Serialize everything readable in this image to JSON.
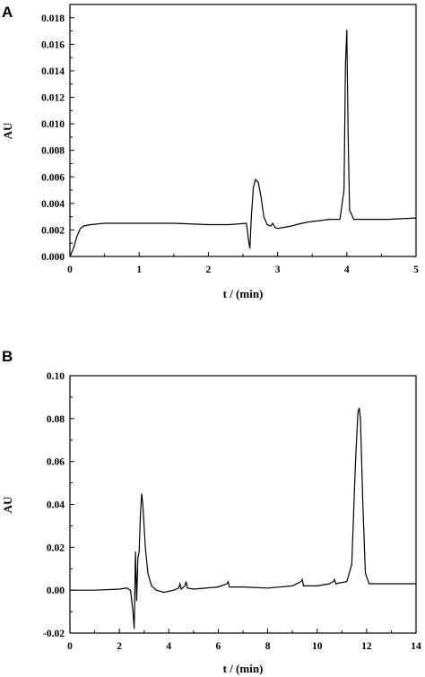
{
  "chart_data": [
    {
      "panel": "A",
      "type": "line",
      "xlabel": "t / (min)",
      "ylabel": "AU",
      "xlim": [
        0,
        5
      ],
      "ylim": [
        0,
        0.019
      ],
      "xticks": [
        0,
        1,
        2,
        3,
        4,
        5
      ],
      "yticks": [
        "0.000",
        "0.002",
        "0.004",
        "0.006",
        "0.008",
        "0.010",
        "0.012",
        "0.014",
        "0.016",
        "0.018"
      ],
      "grid": false,
      "legend": "none",
      "line_color": "#000000",
      "series": [
        {
          "x": [
            0,
            0.05,
            0.1,
            0.15,
            0.2,
            0.3,
            0.5,
            1.0,
            1.5,
            2.0,
            2.3,
            2.55,
            2.58,
            2.6,
            2.62,
            2.65,
            2.68,
            2.72,
            2.76,
            2.8,
            2.85,
            2.9,
            2.93,
            2.96,
            3.0,
            3.2,
            3.35,
            3.45,
            3.6,
            3.75,
            3.9,
            3.96,
            3.98,
            4.0,
            4.02,
            4.04,
            4.1,
            4.3,
            4.6,
            5.0
          ],
          "y": [
            0.0,
            0.0006,
            0.0015,
            0.0021,
            0.0023,
            0.0024,
            0.0025,
            0.0025,
            0.0025,
            0.0024,
            0.0024,
            0.0025,
            0.0012,
            0.0006,
            0.003,
            0.0052,
            0.0058,
            0.0056,
            0.0045,
            0.003,
            0.0024,
            0.0023,
            0.0025,
            0.0022,
            0.0021,
            0.0023,
            0.0025,
            0.0026,
            0.0027,
            0.0028,
            0.0028,
            0.005,
            0.0145,
            0.0171,
            0.009,
            0.0035,
            0.0028,
            0.0028,
            0.0028,
            0.0029
          ]
        }
      ]
    },
    {
      "panel": "B",
      "type": "line",
      "xlabel": "t / (min)",
      "ylabel": "AU",
      "xlim": [
        0,
        14
      ],
      "ylim": [
        -0.02,
        0.1
      ],
      "xticks": [
        0,
        2,
        4,
        6,
        8,
        10,
        12,
        14
      ],
      "yticks": [
        "-0.02",
        "0.00",
        "0.02",
        "0.04",
        "0.06",
        "0.08",
        "0.10"
      ],
      "grid": false,
      "legend": "none",
      "line_color": "#000000",
      "series": [
        {
          "x": [
            0,
            1.0,
            2.0,
            2.3,
            2.45,
            2.55,
            2.6,
            2.65,
            2.7,
            2.75,
            2.8,
            2.85,
            2.9,
            2.95,
            3.0,
            3.05,
            3.15,
            3.3,
            3.5,
            3.8,
            4.2,
            4.4,
            4.45,
            4.5,
            4.65,
            4.7,
            4.75,
            5.0,
            6.0,
            6.35,
            6.4,
            6.45,
            7.0,
            8.0,
            9.0,
            9.35,
            9.4,
            9.45,
            10.0,
            10.5,
            10.65,
            10.7,
            10.75,
            11.2,
            11.4,
            11.55,
            11.65,
            11.7,
            11.75,
            11.85,
            11.95,
            12.1,
            12.5,
            14.0
          ],
          "y": [
            0.0,
            0.0,
            0.0005,
            0.001,
            0.0,
            -0.01,
            -0.018,
            0.018,
            -0.005,
            0.015,
            0.018,
            0.035,
            0.045,
            0.04,
            0.03,
            0.02,
            0.008,
            0.002,
            0.0,
            -0.001,
            0.0,
            0.001,
            0.003,
            0.0005,
            0.002,
            0.004,
            0.001,
            0.0005,
            0.0015,
            0.003,
            0.004,
            0.0015,
            0.0015,
            0.001,
            0.002,
            0.004,
            0.005,
            0.002,
            0.002,
            0.003,
            0.004,
            0.005,
            0.003,
            0.004,
            0.012,
            0.06,
            0.083,
            0.085,
            0.08,
            0.04,
            0.008,
            0.003,
            0.003,
            0.003
          ]
        }
      ]
    }
  ]
}
